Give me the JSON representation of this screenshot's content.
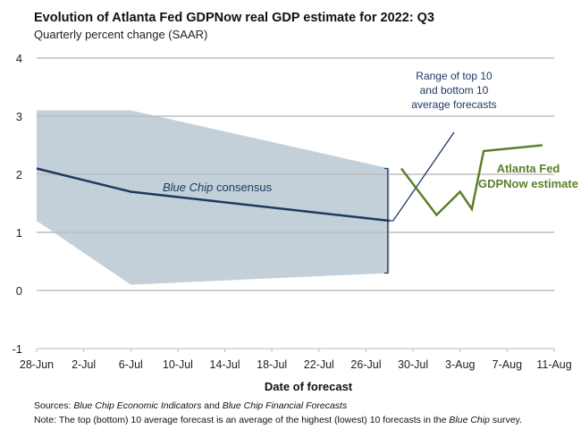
{
  "chart_data": {
    "type": "line",
    "title": "Evolution of Atlanta Fed GDPNow real GDP estimate for 2022: Q3",
    "subtitle": "Quarterly percent change (SAAR)",
    "xlabel": "Date of forecast",
    "ylabel": "",
    "ylim": [
      -1,
      4
    ],
    "yticks": [
      "4",
      "3",
      "2",
      "1",
      "0",
      "-1"
    ],
    "xticks": [
      "28-Jun",
      "2-Jul",
      "6-Jul",
      "10-Jul",
      "14-Jul",
      "18-Jul",
      "22-Jul",
      "26-Jul",
      "30-Jul",
      "3-Aug",
      "7-Aug",
      "11-Aug"
    ],
    "xlim_days": [
      0,
      44
    ],
    "grid": true,
    "series": [
      {
        "name": "Blue Chip consensus",
        "label_italic": "Blue Chip",
        "label_rest": " consensus",
        "color": "#1f3864",
        "x": [
          0,
          8,
          30
        ],
        "y": [
          2.1,
          1.7,
          1.2
        ]
      },
      {
        "name": "Range of top 10 and bottom 10 average forecasts",
        "color": "#c3d0d9",
        "x": [
          0,
          8,
          30
        ],
        "upper": [
          3.1,
          3.1,
          2.1
        ],
        "lower": [
          1.2,
          0.1,
          0.3
        ]
      },
      {
        "name": "Atlanta Fed GDPNow estimate",
        "label_line1": "Atlanta Fed",
        "label_line2": "GDPNow estimate",
        "color": "#5d7f2a",
        "x": [
          31,
          34,
          36,
          37,
          38,
          43
        ],
        "y": [
          2.1,
          1.3,
          1.7,
          1.4,
          2.4,
          2.5
        ]
      }
    ],
    "annotation": {
      "line1": "Range of top 10",
      "line2": "and bottom 10",
      "line3": "average forecasts",
      "color": "#1f3864"
    }
  },
  "footer": {
    "sources_label": "Sources:",
    "sources_italic1": "Blue Chip Economic Indicators",
    "sources_and": " and ",
    "sources_italic2": "Blue Chip Financial Forecasts",
    "note_label": "Note:",
    "note_text": " The top (bottom) 10 average forecast is an average of the highest (lowest) 10 forecasts in the ",
    "note_italic": "Blue Chip",
    "note_end": " survey."
  }
}
